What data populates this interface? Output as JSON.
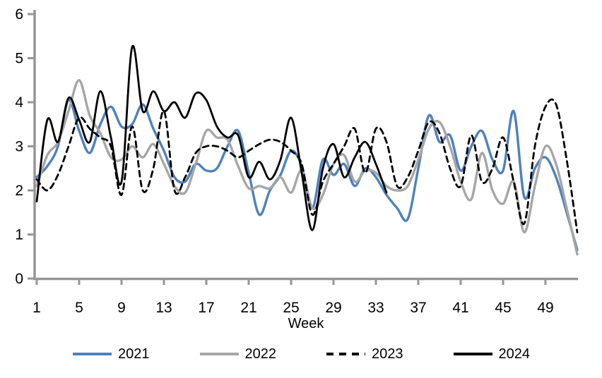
{
  "chart_data": {
    "type": "line",
    "title": "",
    "xlabel": "Week",
    "ylabel": "",
    "xlim": [
      1,
      52
    ],
    "ylim": [
      0,
      6
    ],
    "grid": false,
    "legend_position": "bottom",
    "axis_color": "#969696",
    "x_ticks": [
      1,
      5,
      9,
      13,
      17,
      21,
      25,
      29,
      33,
      37,
      41,
      45,
      49
    ],
    "y_ticks": [
      0,
      1,
      2,
      3,
      4,
      5,
      6
    ],
    "x": [
      1,
      2,
      3,
      4,
      5,
      6,
      7,
      8,
      9,
      10,
      11,
      12,
      13,
      14,
      15,
      16,
      17,
      18,
      19,
      20,
      21,
      22,
      23,
      24,
      25,
      26,
      27,
      28,
      29,
      30,
      31,
      32,
      33,
      34,
      35,
      36,
      37,
      38,
      39,
      40,
      41,
      42,
      43,
      44,
      45,
      46,
      47,
      48,
      49,
      50,
      51,
      52
    ],
    "series": [
      {
        "name": "2021",
        "color": "#4F81BD",
        "style": "solid",
        "values": [
          2.3,
          2.55,
          3.0,
          4.05,
          3.35,
          2.85,
          3.5,
          3.9,
          3.45,
          3.5,
          3.95,
          3.4,
          2.9,
          2.3,
          2.2,
          2.6,
          2.45,
          2.5,
          3.0,
          3.35,
          2.4,
          1.45,
          2.0,
          2.35,
          2.9,
          2.55,
          1.6,
          2.7,
          2.35,
          2.6,
          2.1,
          2.5,
          2.3,
          1.9,
          1.6,
          1.35,
          2.5,
          3.7,
          3.1,
          3.25,
          2.45,
          3.0,
          3.35,
          2.7,
          2.45,
          3.8,
          1.85,
          2.5,
          2.75,
          2.3,
          1.5,
          0.65
        ]
      },
      {
        "name": "2022",
        "color": "#A6A6A6",
        "style": "solid",
        "values": [
          2.1,
          2.8,
          3.1,
          3.8,
          4.5,
          3.7,
          3.3,
          2.75,
          2.7,
          3.0,
          2.75,
          3.05,
          2.6,
          2.1,
          1.95,
          2.6,
          3.35,
          3.2,
          3.15,
          2.55,
          2.05,
          2.1,
          2.05,
          2.3,
          1.95,
          2.45,
          1.6,
          1.9,
          2.6,
          2.8,
          2.2,
          2.45,
          2.4,
          2.1,
          2.0,
          2.1,
          2.7,
          3.4,
          3.55,
          3.0,
          2.2,
          1.8,
          2.85,
          2.0,
          1.7,
          2.2,
          1.05,
          2.1,
          3.0,
          2.6,
          1.6,
          0.55
        ]
      },
      {
        "name": "2023",
        "color": "#000000",
        "style": "dashed",
        "values": [
          2.25,
          2.0,
          2.35,
          3.0,
          3.65,
          3.4,
          3.2,
          3.0,
          1.9,
          3.45,
          2.0,
          2.5,
          3.8,
          2.0,
          2.3,
          2.85,
          3.0,
          3.0,
          2.9,
          2.75,
          2.9,
          3.05,
          3.15,
          3.1,
          2.9,
          2.6,
          1.45,
          2.2,
          2.6,
          3.0,
          3.4,
          2.4,
          3.4,
          3.1,
          2.1,
          2.3,
          2.9,
          3.55,
          3.3,
          2.5,
          2.1,
          3.25,
          2.2,
          2.5,
          3.2,
          2.2,
          1.25,
          3.0,
          3.9,
          3.95,
          2.7,
          1.05
        ]
      },
      {
        "name": "2024",
        "color": "#000000",
        "style": "solid",
        "values": [
          1.75,
          3.6,
          3.1,
          4.1,
          3.6,
          3.1,
          4.25,
          3.2,
          2.2,
          5.25,
          3.8,
          4.25,
          3.8,
          4.0,
          3.65,
          4.2,
          4.05,
          3.45,
          3.2,
          3.25,
          2.3,
          2.65,
          2.25,
          2.7,
          3.65,
          2.4,
          1.1,
          2.5,
          3.05,
          2.3,
          2.75,
          3.1,
          2.6,
          1.95
        ]
      }
    ]
  }
}
